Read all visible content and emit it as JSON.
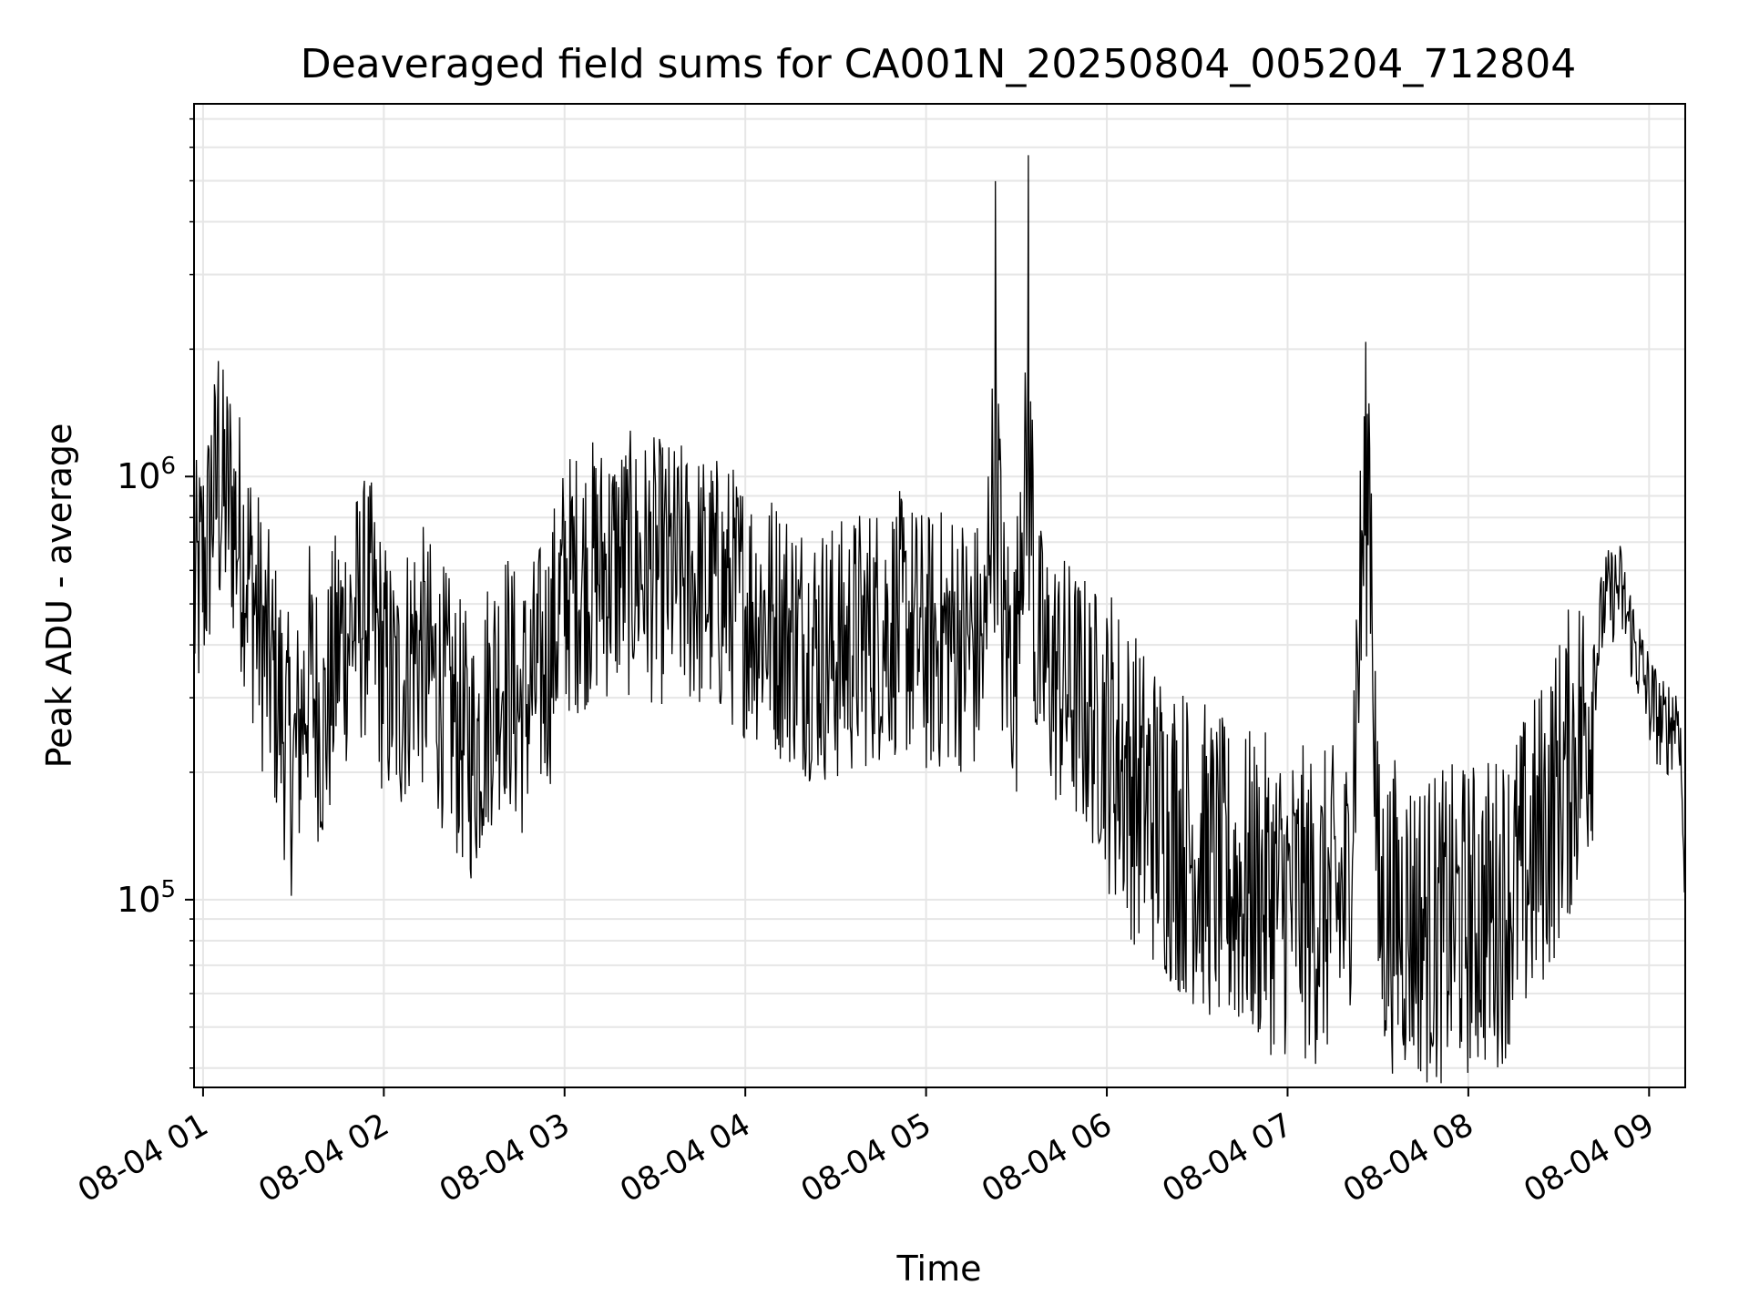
{
  "chart_data": {
    "type": "line",
    "title": "Deaveraged field sums for CA001N_20250804_005204_712804",
    "xlabel": "Time",
    "ylabel": "Peak ADU - average",
    "x_axis": {
      "type": "time",
      "range": [
        "08-04 00:57",
        "08-04 09:12"
      ],
      "ticks": [
        "08-04 01",
        "08-04 02",
        "08-04 03",
        "08-04 04",
        "08-04 05",
        "08-04 06",
        "08-04 07",
        "08-04 08",
        "08-04 09"
      ],
      "tick_rotation_deg": 30
    },
    "y_axis": {
      "scale": "log",
      "range": [
        36000,
        7600000
      ],
      "major_ticks": [
        {
          "value": 100000,
          "base": "10",
          "exp": "5"
        },
        {
          "value": 1000000,
          "base": "10",
          "exp": "6"
        }
      ]
    },
    "grid": true,
    "series": [
      {
        "color": "#000000",
        "x": [
          "08-04 00:57",
          "08-04 01:02",
          "08-04 01:05",
          "08-04 01:10",
          "08-04 01:14",
          "08-04 01:20",
          "08-04 01:25",
          "08-04 01:30",
          "08-04 01:35",
          "08-04 01:40",
          "08-04 01:45",
          "08-04 01:50",
          "08-04 01:55",
          "08-04 02:00",
          "08-04 02:05",
          "08-04 02:10",
          "08-04 02:15",
          "08-04 02:20",
          "08-04 02:25",
          "08-04 02:30",
          "08-04 02:35",
          "08-04 02:40",
          "08-04 02:45",
          "08-04 02:50",
          "08-04 02:55",
          "08-04 03:00",
          "08-04 03:10",
          "08-04 03:20",
          "08-04 03:30",
          "08-04 03:40",
          "08-04 03:50",
          "08-04 04:00",
          "08-04 04:10",
          "08-04 04:20",
          "08-04 04:30",
          "08-04 04:40",
          "08-04 04:50",
          "08-04 04:55",
          "08-04 05:00",
          "08-04 05:10",
          "08-04 05:20",
          "08-04 05:23",
          "08-04 05:25",
          "08-04 05:30",
          "08-04 05:34",
          "08-04 05:36",
          "08-04 05:40",
          "08-04 05:50",
          "08-04 06:00",
          "08-04 06:10",
          "08-04 06:20",
          "08-04 06:30",
          "08-04 06:40",
          "08-04 06:50",
          "08-04 07:00",
          "08-04 07:10",
          "08-04 07:20",
          "08-04 07:27",
          "08-04 07:30",
          "08-04 07:40",
          "08-04 07:50",
          "08-04 07:55",
          "08-04 08:00",
          "08-04 08:10",
          "08-04 08:20",
          "08-04 08:30",
          "08-04 08:40",
          "08-04 08:45",
          "08-04 08:50",
          "08-04 09:00",
          "08-04 09:05",
          "08-04 09:10",
          "08-04 09:12"
        ],
        "values": [
          500000,
          700000,
          1900000,
          800000,
          650000,
          400000,
          300000,
          200000,
          350000,
          250000,
          400000,
          450000,
          500000,
          350000,
          300000,
          400000,
          350000,
          300000,
          250000,
          220000,
          300000,
          350000,
          280000,
          320000,
          380000,
          550000,
          600000,
          620000,
          600000,
          580000,
          550000,
          500000,
          450000,
          400000,
          380000,
          420000,
          450000,
          430000,
          400000,
          420000,
          380000,
          5000000,
          450000,
          350000,
          6000000,
          400000,
          350000,
          300000,
          250000,
          180000,
          150000,
          130000,
          110000,
          105000,
          100000,
          95000,
          100000,
          1500000,
          95000,
          90000,
          85000,
          88000,
          90000,
          95000,
          120000,
          180000,
          280000,
          500000,
          550000,
          300000,
          250000,
          280000,
          100000
        ]
      }
    ]
  }
}
